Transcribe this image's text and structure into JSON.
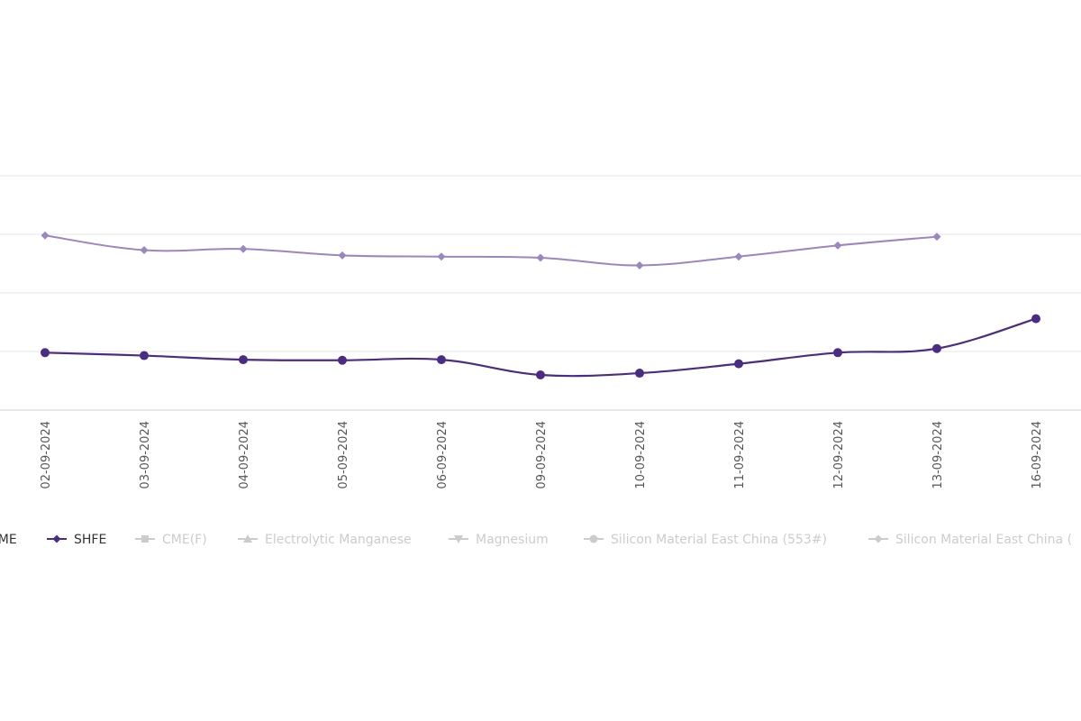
{
  "chart_data": {
    "type": "line",
    "categories": [
      "02-09-2024",
      "03-09-2024",
      "04-09-2024",
      "05-09-2024",
      "06-09-2024",
      "09-09-2024",
      "10-09-2024",
      "11-09-2024",
      "12-09-2024",
      "13-09-2024",
      "16-09-2024"
    ],
    "series": [
      {
        "name": "LME",
        "color": "#9b86c1",
        "marker": "diamond",
        "values": [
          2.98,
          2.73,
          2.75,
          2.64,
          2.62,
          2.6,
          2.47,
          2.62,
          2.81,
          2.96,
          null
        ]
      },
      {
        "name": "SHFE",
        "color": "#4b2c84",
        "marker": "circle",
        "values": [
          0.98,
          0.93,
          0.86,
          0.85,
          0.86,
          0.6,
          0.63,
          0.79,
          0.98,
          1.05,
          1.56
        ]
      }
    ],
    "ylim": [
      0,
      4
    ],
    "grid": true,
    "legend": {
      "placement": "bottom",
      "items": [
        {
          "label": "LME",
          "marker": "diamond",
          "color": "#9b86c1",
          "active": true
        },
        {
          "label": "SHFE",
          "marker": "diamond",
          "color": "#4b2c84",
          "active": true
        },
        {
          "label": "CME(F)",
          "marker": "square",
          "color": "#cccccc",
          "active": false
        },
        {
          "label": "Electrolytic Manganese",
          "marker": "triangle",
          "color": "#cccccc",
          "active": false
        },
        {
          "label": "Magnesium",
          "marker": "triangle-down",
          "color": "#cccccc",
          "active": false
        },
        {
          "label": "Silicon Material East China (553#)",
          "marker": "circle",
          "color": "#cccccc",
          "active": false
        },
        {
          "label": "Silicon Material East China (",
          "marker": "diamond",
          "color": "#cccccc",
          "active": false
        }
      ]
    }
  }
}
